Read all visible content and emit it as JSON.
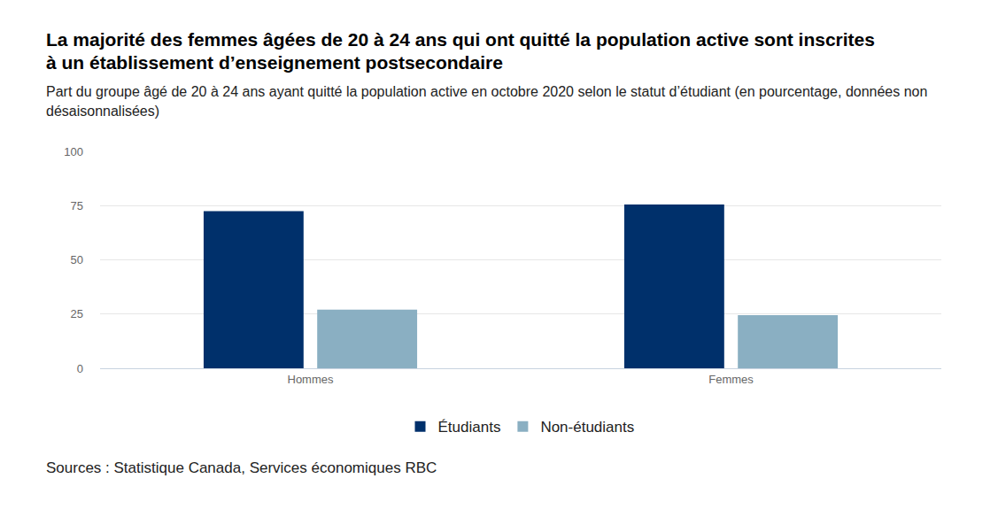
{
  "chart_data": {
    "type": "bar",
    "title": "La majorité des femmes âgées de 20 à 24 ans qui ont quitté la population active sont inscrites à un établissement d’enseignement postsecondaire",
    "subtitle": "Part du groupe âgé de 20 à 24 ans ayant quitté la population active en octobre 2020 selon le statut d’étudiant (en pourcentage, données non désaisonnalisées)",
    "source": "Sources : Statistique Canada, Services économiques RBC",
    "categories": [
      "Hommes",
      "Femmes"
    ],
    "series": [
      {
        "name": "Étudiants",
        "color": "#00306b",
        "values": [
          72.5,
          75.5
        ]
      },
      {
        "name": "Non-étudiants",
        "color": "#8aafc2",
        "values": [
          27,
          24.5
        ]
      }
    ],
    "ylim": [
      0,
      100
    ],
    "yticks": [
      0,
      25,
      50,
      75,
      100
    ],
    "grid": true,
    "legend": "bottom"
  }
}
